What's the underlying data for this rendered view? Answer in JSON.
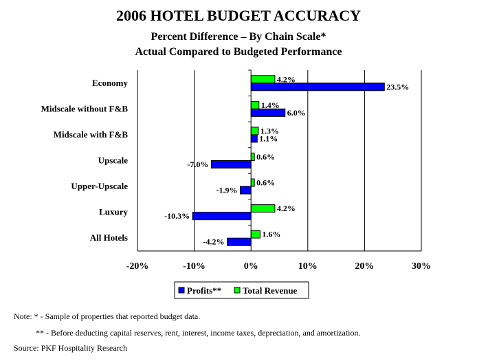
{
  "title": "2006 HOTEL BUDGET ACCURACY",
  "subtitle_1": "Percent Difference – By Chain Scale*",
  "subtitle_2": "Actual Compared to Budgeted Performance",
  "notes": {
    "note_1": "Note: * - Sample of properties that reported budget data.",
    "note_2": "** - Before deducting capital reserves, rent, interest, income taxes, depreciation, and amortization.",
    "source": "Source: PKF Hospitality Research"
  },
  "chart_data": {
    "type": "bar",
    "orientation": "horizontal",
    "title": "2006 HOTEL BUDGET ACCURACY",
    "categories": [
      "Economy",
      "Midscale without F&B",
      "Midscale with F&B",
      "Upscale",
      "Upper-Upscale",
      "Luxury",
      "All Hotels"
    ],
    "series": [
      {
        "name": "Profits**",
        "color": "#0000ff",
        "values": [
          23.5,
          6.0,
          1.1,
          -7.0,
          -1.9,
          -10.3,
          -4.2
        ],
        "labels": [
          "23.5%",
          "6.0%",
          "1.1%",
          "-7.0%",
          "-1.9%",
          "-10.3%",
          "-4.2%"
        ]
      },
      {
        "name": "Total Revenue",
        "color": "#00ff00",
        "values": [
          4.2,
          1.4,
          1.3,
          0.6,
          0.6,
          4.2,
          1.6
        ],
        "labels": [
          "4.2%",
          "1.4%",
          "1.3%",
          "0.6%",
          "0.6%",
          "4.2%",
          "1.6%"
        ]
      }
    ],
    "xlim": [
      -20,
      30
    ],
    "x_ticks": [
      -20,
      -10,
      0,
      10,
      20,
      30
    ],
    "x_tick_labels": [
      "-20%",
      "-10%",
      "0%",
      "10%",
      "20%",
      "30%"
    ],
    "grid": "vertical",
    "legend_position": "bottom"
  }
}
